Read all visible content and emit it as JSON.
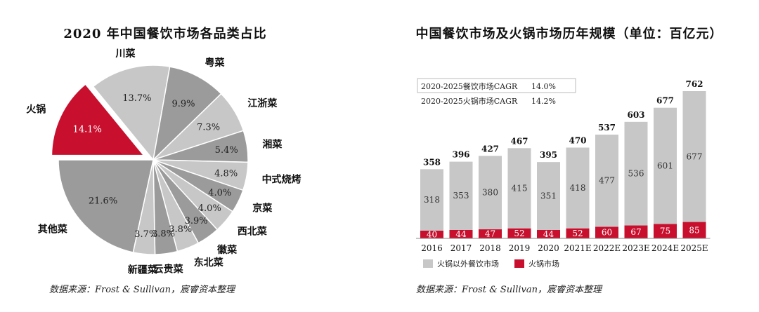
{
  "chart_data": [
    {
      "type": "pie",
      "title": "2020 年中国餐饮市场各品类占比",
      "source": "数据来源：Frost & Sullivan，宸睿资本整理",
      "slices": [
        {
          "name": "火锅",
          "label": "14.1%",
          "value": 14.1,
          "color": "#C8102E",
          "highlight": true
        },
        {
          "name": "川菜",
          "label": "13.7%",
          "value": 13.7,
          "color": "#C7C7C7"
        },
        {
          "name": "粤菜",
          "label": "9.9%",
          "value": 9.9,
          "color": "#9B9B9B"
        },
        {
          "name": "江浙菜",
          "label": "7.3%",
          "value": 7.3,
          "color": "#C7C7C7"
        },
        {
          "name": "湘菜",
          "label": "5.4%",
          "value": 5.4,
          "color": "#9B9B9B"
        },
        {
          "name": "中式烧烤",
          "label": "4.8%",
          "value": 4.8,
          "color": "#C7C7C7"
        },
        {
          "name": "京菜",
          "label": "4.0%",
          "value": 4.0,
          "color": "#9B9B9B"
        },
        {
          "name": "西北菜",
          "label": "4.0%",
          "value": 4.0,
          "color": "#C7C7C7"
        },
        {
          "name": "徽菜",
          "label": "3.9%",
          "value": 3.9,
          "color": "#9B9B9B"
        },
        {
          "name": "东北菜",
          "label": "3.8%",
          "value": 3.8,
          "color": "#C7C7C7"
        },
        {
          "name": "云贵菜",
          "label": "3.8%",
          "value": 3.8,
          "color": "#9B9B9B"
        },
        {
          "name": "新疆菜",
          "label": "3.7%",
          "value": 3.7,
          "color": "#C7C7C7"
        },
        {
          "name": "其他菜",
          "label": "21.6%",
          "value": 21.6,
          "color": "#9B9B9B"
        }
      ]
    },
    {
      "type": "bar",
      "stacked": true,
      "title": "中国餐饮市场及火锅市场历年规模（单位：百亿元）",
      "source": "数据来源：Frost & Sullivan，宸睿资本整理",
      "categories": [
        "2016",
        "2017",
        "2018",
        "2019",
        "2020",
        "2021E",
        "2022E",
        "2023E",
        "2024E",
        "2025E"
      ],
      "series": [
        {
          "name": "火锅市场",
          "color": "#C8102E",
          "values": [
            40,
            44,
            47,
            52,
            44,
            52,
            60,
            67,
            75,
            85
          ]
        },
        {
          "name": "火锅以外餐饮市场",
          "color": "#C7C7C7",
          "values": [
            318,
            353,
            380,
            415,
            351,
            418,
            477,
            536,
            601,
            677
          ]
        }
      ],
      "totals": [
        358,
        396,
        427,
        467,
        395,
        470,
        537,
        603,
        677,
        762
      ],
      "cagr_table": [
        {
          "label": "2020-2025餐饮市场CAGR",
          "value": "14.0%"
        },
        {
          "label": "2020-2025火锅市场CAGR",
          "value": "14.2%"
        }
      ],
      "legend": [
        "火锅以外餐饮市场",
        "火锅市场"
      ]
    }
  ]
}
